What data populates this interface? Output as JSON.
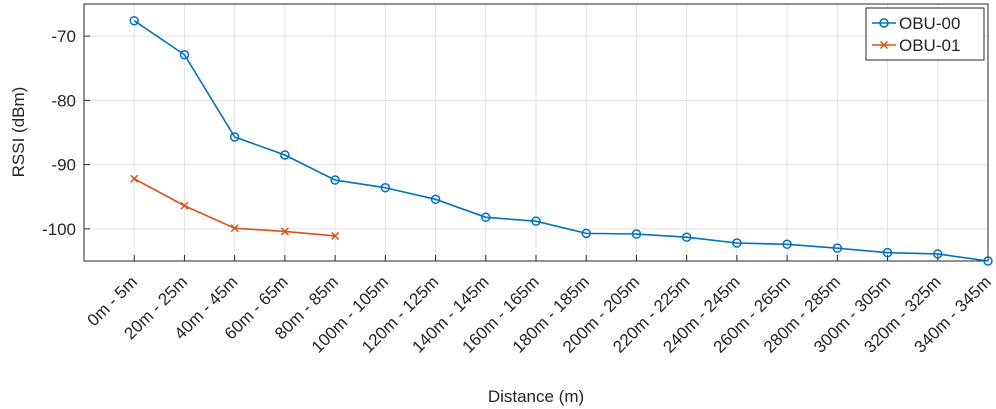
{
  "chart_data": {
    "type": "line",
    "x_label": "Distance (m)",
    "y_label": "RSSI (dBm)",
    "categories": [
      "0m - 5m",
      "20m - 25m",
      "40m - 45m",
      "60m - 65m",
      "80m - 85m",
      "100m - 105m",
      "120m - 125m",
      "140m - 145m",
      "160m - 165m",
      "180m - 185m",
      "200m - 205m",
      "220m - 225m",
      "240m - 245m",
      "260m - 265m",
      "280m - 285m",
      "300m - 305m",
      "320m - 325m",
      "340m - 345m"
    ],
    "series": [
      {
        "name": "OBU-00",
        "color": "#0072BD",
        "marker": "o",
        "values": [
          -67.6,
          -72.9,
          -85.7,
          -88.5,
          -92.4,
          -93.6,
          -95.4,
          -98.2,
          -98.8,
          -100.7,
          -100.8,
          -101.3,
          -102.2,
          -102.4,
          -103.0,
          -103.7,
          -103.9,
          -105.0
        ]
      },
      {
        "name": "OBU-01",
        "color": "#D95319",
        "marker": "x",
        "values": [
          -92.2,
          -96.4,
          -99.9,
          -100.4,
          -101.1,
          null,
          null,
          null,
          null,
          null,
          null,
          null,
          null,
          null,
          null,
          null,
          null,
          null
        ]
      }
    ],
    "ylim": [
      -105,
      -65
    ],
    "yticks": [
      -100,
      -90,
      -80,
      -70
    ],
    "grid": true,
    "legend": "top-right"
  }
}
